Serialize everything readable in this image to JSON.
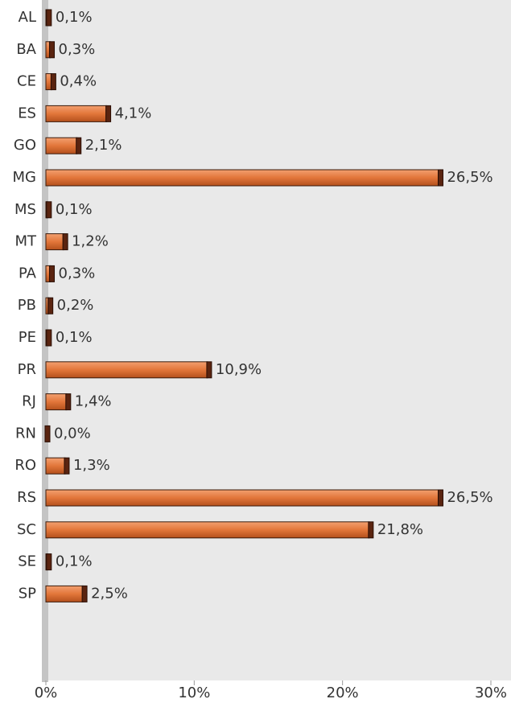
{
  "chart_data": {
    "type": "barh",
    "categories": [
      "AL",
      "BA",
      "CE",
      "ES",
      "GO",
      "MG",
      "MS",
      "MT",
      "PA",
      "PB",
      "PE",
      "PR",
      "RJ",
      "RN",
      "RO",
      "RS",
      "SC",
      "SE",
      "SP"
    ],
    "values": [
      0.1,
      0.3,
      0.4,
      4.1,
      2.1,
      26.5,
      0.1,
      1.2,
      0.3,
      0.2,
      0.1,
      10.9,
      1.4,
      0.0,
      1.3,
      26.5,
      21.8,
      0.1,
      2.5
    ],
    "value_labels": [
      "0,1%",
      "0,3%",
      "0,4%",
      "4,1%",
      "2,1%",
      "26,5%",
      "0,1%",
      "1,2%",
      "0,3%",
      "0,2%",
      "0,1%",
      "10,9%",
      "1,4%",
      "0,0%",
      "1,3%",
      "26,5%",
      "21,8%",
      "0,1%",
      "2,5%"
    ],
    "color": "#e2763a",
    "xlim": [
      0,
      30
    ],
    "xticks": [
      {
        "value": 0,
        "label": "0%"
      },
      {
        "value": 10,
        "label": "10%"
      },
      {
        "value": 20,
        "label": "20%"
      },
      {
        "value": 30,
        "label": "30%"
      }
    ]
  }
}
